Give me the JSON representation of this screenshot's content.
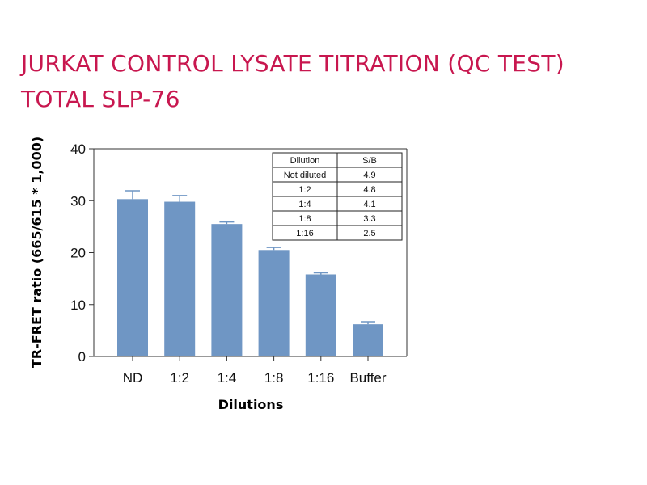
{
  "header": {
    "title_line1": "JURKAT CONTROL LYSATE TITRATION (QC TEST)",
    "title_line2": "TOTAL SLP-76"
  },
  "colors": {
    "title": "#c8174f",
    "bar": "#6f96c4",
    "error_bar": "#6f96c4",
    "axis": "#333333"
  },
  "chart_data": {
    "type": "bar",
    "title": "JURKAT CONTROL LYSATE TITRATION (QC TEST) TOTAL SLP-76",
    "xlabel": "Dilutions",
    "ylabel": "TR-FRET ratio (665/615 * 1,000)",
    "ylim": [
      0,
      40
    ],
    "yticks": [
      0,
      10,
      20,
      30,
      40
    ],
    "grid": false,
    "categories": [
      "ND",
      "1:2",
      "1:4",
      "1:8",
      "1:16",
      "Buffer"
    ],
    "values": [
      30.3,
      29.8,
      25.5,
      20.5,
      15.8,
      6.2
    ],
    "errors": [
      1.6,
      1.2,
      0.4,
      0.5,
      0.3,
      0.5
    ],
    "table": {
      "headers": [
        "Dilution",
        "S/B"
      ],
      "rows": [
        [
          "Not diluted",
          "4.9"
        ],
        [
          "1:2",
          "4.8"
        ],
        [
          "1:4",
          "4.1"
        ],
        [
          "1:8",
          "3.3"
        ],
        [
          "1:16",
          "2.5"
        ]
      ]
    }
  }
}
